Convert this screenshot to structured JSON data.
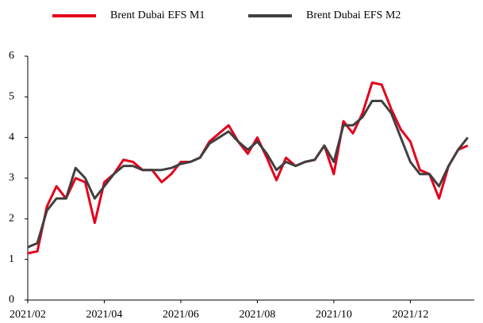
{
  "chart_data": {
    "type": "line",
    "categories": [
      "2021/02",
      null,
      null,
      null,
      null,
      null,
      null,
      null,
      "2021/04",
      null,
      null,
      null,
      null,
      null,
      null,
      null,
      "2021/06",
      null,
      null,
      null,
      null,
      null,
      null,
      null,
      "2021/08",
      null,
      null,
      null,
      null,
      null,
      null,
      null,
      "2021/10",
      null,
      null,
      null,
      null,
      null,
      null,
      null,
      "2021/12",
      null,
      null,
      null,
      null,
      null,
      null
    ],
    "series": [
      {
        "name": "Brent Dubai EFS M1",
        "color": "#e3001b",
        "values": [
          1.15,
          1.2,
          2.3,
          2.8,
          2.5,
          3.0,
          2.9,
          1.9,
          2.9,
          3.1,
          3.45,
          3.4,
          3.2,
          3.2,
          2.9,
          3.1,
          3.4,
          3.4,
          3.5,
          3.9,
          4.1,
          4.3,
          3.9,
          3.6,
          4.0,
          3.5,
          2.95,
          3.5,
          3.3,
          3.4,
          3.45,
          3.8,
          3.1,
          4.4,
          4.1,
          4.6,
          5.35,
          5.3,
          4.7,
          4.2,
          3.9,
          3.2,
          3.1,
          2.5,
          3.3,
          3.7,
          3.8
        ]
      },
      {
        "name": "Brent Dubai EFS M2",
        "color": "#404040",
        "values": [
          1.3,
          1.4,
          2.2,
          2.5,
          2.5,
          3.25,
          3.0,
          2.5,
          2.8,
          3.1,
          3.3,
          3.3,
          3.2,
          3.2,
          3.2,
          3.25,
          3.35,
          3.4,
          3.5,
          3.85,
          4.0,
          4.15,
          3.9,
          3.7,
          3.9,
          3.6,
          3.2,
          3.4,
          3.3,
          3.4,
          3.45,
          3.8,
          3.4,
          4.3,
          4.3,
          4.5,
          4.9,
          4.9,
          4.6,
          4.0,
          3.4,
          3.1,
          3.1,
          2.8,
          3.3,
          3.7,
          4.0
        ]
      }
    ],
    "ylim": [
      0,
      6
    ],
    "yticks": [
      0,
      1,
      2,
      3,
      4,
      5,
      6
    ],
    "legend": "top"
  }
}
